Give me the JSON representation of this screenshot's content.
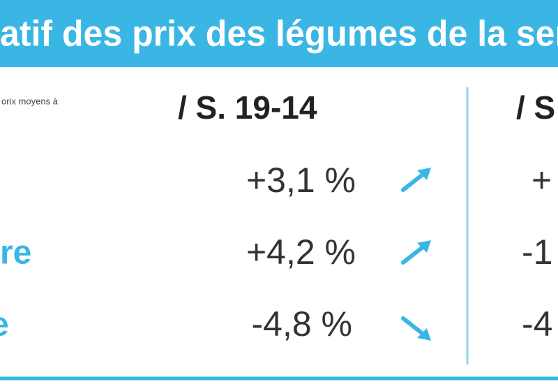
{
  "title": "atif des prix des légumes de la ser",
  "table": {
    "note": "orix moyens à",
    "headers": [
      "/ S. 19-14",
      "/ S"
    ],
    "rows": [
      {
        "cells": [
          "+3,1 %",
          "+"
        ]
      },
      {
        "label": "re",
        "cells": [
          "+4,2 %",
          "-1"
        ]
      },
      {
        "label": "e",
        "cells": [
          "-4,8 %",
          "-4"
        ]
      }
    ]
  }
}
